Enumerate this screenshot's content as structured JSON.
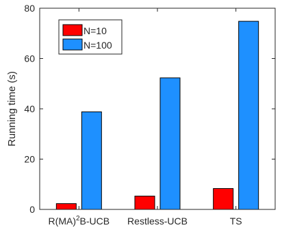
{
  "chart_data": {
    "type": "bar",
    "title": "",
    "xlabel": "",
    "ylabel": "Running time (s)",
    "ylim": [
      0,
      80
    ],
    "yticks": [
      0,
      20,
      40,
      60,
      80
    ],
    "grid": false,
    "legend_position": "top-left",
    "categories": [
      {
        "base": "R(MA)",
        "sup": "2",
        "tail": "B-UCB"
      },
      {
        "base": "Restless-UCB",
        "sup": "",
        "tail": ""
      },
      {
        "base": "TS",
        "sup": "",
        "tail": ""
      }
    ],
    "series": [
      {
        "name": "N=10",
        "color": "#ff0000",
        "values": [
          2.3,
          5.3,
          8.3
        ]
      },
      {
        "name": "N=100",
        "color": "#1e90ff",
        "values": [
          38.8,
          52.3,
          74.8
        ]
      }
    ]
  }
}
